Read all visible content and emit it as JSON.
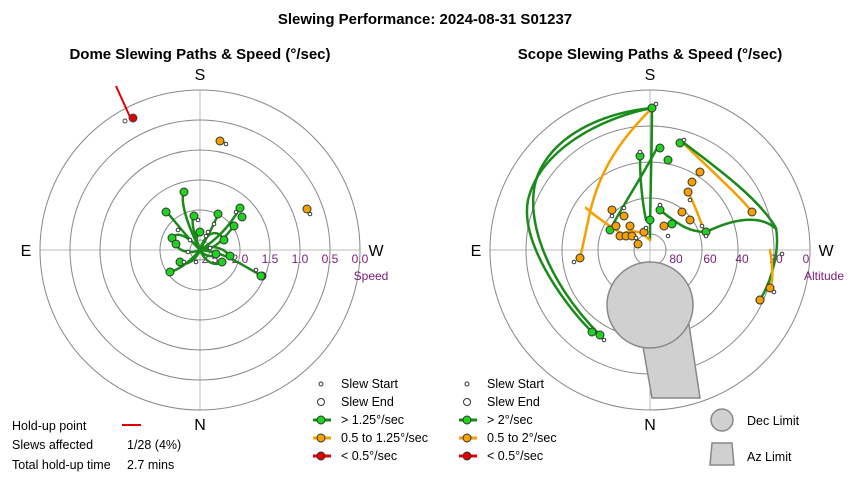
{
  "title": "Slewing Performance: 2024-08-31 S01237",
  "colors": {
    "fast": "#1fd21f",
    "mid": "#f5a000",
    "slow": "#e00000",
    "fast_line": "#1a8a1a",
    "mid_line": "#f5a000",
    "limit_fill": "#d0d0d0",
    "tick_text": "#7b1a7b"
  },
  "left": {
    "subtitle": "Dome Slewing Paths & Speed (°/sec)",
    "cardinals": {
      "top": "S",
      "bottom": "N",
      "left": "E",
      "right": "W"
    },
    "ticks": [
      "2.5",
      "2.0",
      "1.5",
      "1.0",
      "0.5",
      "0.0"
    ],
    "unit_label": "Speed",
    "legend": {
      "slew_start": "Slew Start",
      "slew_end": "Slew End",
      "fast": "> 1.25°/sec",
      "mid": "0.5 to 1.25°/sec",
      "slow": "< 0.5°/sec"
    }
  },
  "right": {
    "subtitle": "Scope Slewing Paths & Speed (°/sec)",
    "cardinals": {
      "top": "S",
      "bottom": "N",
      "left": "E",
      "right": "W"
    },
    "ticks": [
      "80",
      "60",
      "40",
      "20",
      "0"
    ],
    "unit_label": "Altitude",
    "legend": {
      "slew_start": "Slew Start",
      "slew_end": "Slew End",
      "fast": "> 2°/sec",
      "mid": "0.5 to 2°/sec",
      "slow": "< 0.5°/sec",
      "dec_limit": "Dec Limit",
      "az_limit": "Az Limit"
    }
  },
  "stats": {
    "holdup_label": "Hold-up point",
    "slews_affected_label": "Slews affected",
    "slews_affected_value": "1/28 (4%)",
    "total_holdup_label": "Total hold-up time",
    "total_holdup_value": "2.7 mins"
  },
  "chart_data": [
    {
      "type": "scatter",
      "title": "Dome Slewing Paths & Speed (°/sec)",
      "radial_axis": "Speed",
      "radial_ticks": [
        2.5,
        2.0,
        1.5,
        1.0,
        0.5,
        0.0
      ],
      "angular_axis": [
        "S",
        "W",
        "N",
        "E"
      ],
      "legend": [
        "Slew Start",
        "Slew End",
        "> 1.25°/sec",
        "0.5 to 1.25°/sec",
        "< 0.5°/sec"
      ],
      "holdup_points": [
        {
          "az_deg": 45,
          "speed": 0.0
        }
      ],
      "slew_end_points": [
        {
          "az_deg": 39,
          "speed": 0.05,
          "class": "slow"
        },
        {
          "az_deg": 300,
          "speed": 0.65,
          "class": "mid"
        },
        {
          "az_deg": 7,
          "speed": 0.85,
          "class": "mid"
        },
        {
          "az_deg": 338,
          "speed": 1.35,
          "class": "fast"
        },
        {
          "az_deg": 15,
          "speed": 1.6,
          "class": "fast"
        },
        {
          "az_deg": 232,
          "speed": 1.45,
          "class": "fast"
        }
      ]
    },
    {
      "type": "scatter",
      "title": "Scope Slewing Paths & Speed (°/sec)",
      "radial_axis": "Altitude",
      "radial_ticks": [
        80,
        60,
        40,
        20,
        0
      ],
      "angular_axis": [
        "S",
        "W",
        "N",
        "E"
      ],
      "legend": [
        "Slew Start",
        "Slew End",
        "> 2°/sec",
        "0.5 to 2°/sec",
        "< 0.5°/sec",
        "Dec Limit",
        "Az Limit"
      ],
      "slew_end_points": [
        {
          "az_deg": 0,
          "alt": 23,
          "class": "fast"
        },
        {
          "az_deg": 300,
          "alt": 22,
          "class": "mid"
        },
        {
          "az_deg": 240,
          "alt": 23,
          "class": "mid"
        },
        {
          "az_deg": 78,
          "alt": 28,
          "class": "mid"
        },
        {
          "az_deg": 22,
          "alt": 52,
          "class": "fast"
        },
        {
          "az_deg": 150,
          "alt": 10,
          "class": "fast"
        },
        {
          "az_deg": 72,
          "alt": 18,
          "class": "fast"
        }
      ]
    }
  ]
}
